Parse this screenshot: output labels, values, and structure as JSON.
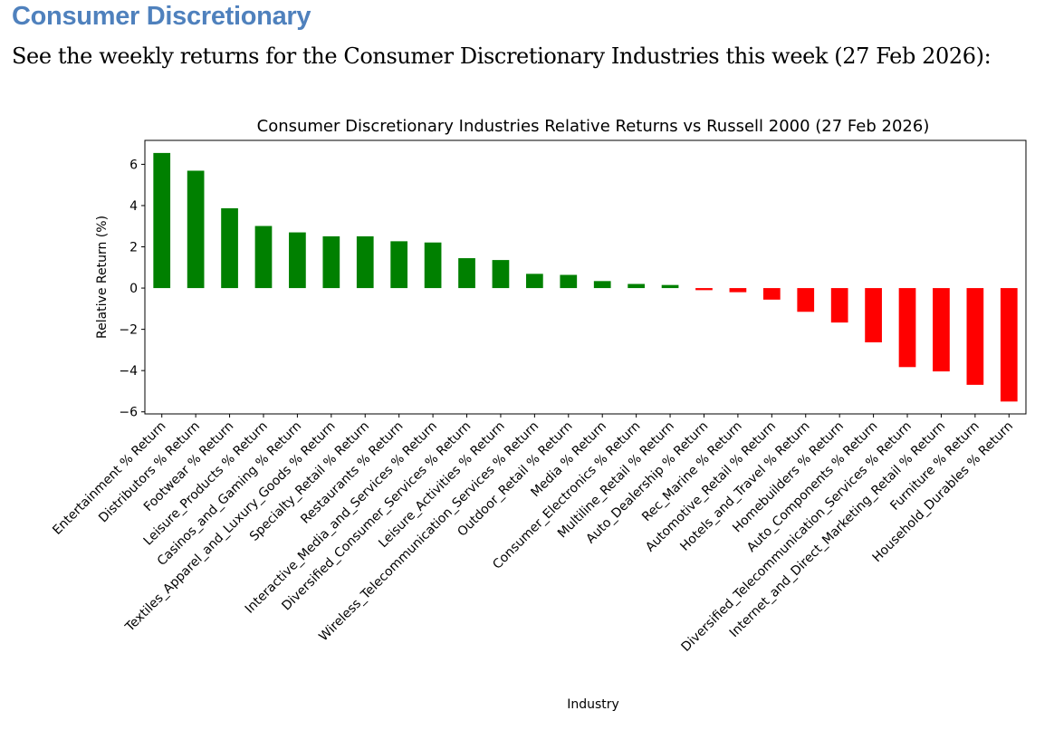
{
  "document": {
    "heading": "Consumer Discretionary",
    "intro": "See the weekly returns for the Consumer Discretionary Industries this week (27 Feb 2026):"
  },
  "chart_data": {
    "type": "bar",
    "title": "Consumer Discretionary Industries Relative Returns vs Russell 2000 (27 Feb 2026)",
    "xlabel": "Industry",
    "ylabel": "Relative Return (%)",
    "ylim": [
      -6.1,
      7.16
    ],
    "yticks": [
      -6,
      -4,
      -2,
      0,
      2,
      4,
      6
    ],
    "grid": false,
    "colors": {
      "positive": "#008000",
      "negative": "#ff0000"
    },
    "categories": [
      "Entertainment % Return",
      "Distributors % Return",
      "Footwear % Return",
      "Leisure_Products % Return",
      "Casinos_and_Gaming % Return",
      "Textiles_Apparel_and_Luxury_Goods % Return",
      "Specialty_Retail % Return",
      "Restaurants % Return",
      "Interactive_Media_and_Services % Return",
      "Diversified_Consumer_Services % Return",
      "Leisure_Activities % Return",
      "Wireless_Telecommunication_Services % Return",
      "Outdoor_Retail % Return",
      "Media % Return",
      "Consumer_Electronics % Return",
      "Multiline_Retail % Return",
      "Auto_Dealership % Return",
      "Rec_Marine % Return",
      "Automotive_Retail % Return",
      "Hotels_and_Travel % Return",
      "Homebuilders % Return",
      "Auto_Components % Return",
      "Diversified_Telecommunication_Services % Return",
      "Internet_and_Direct_Marketing_Retail % Return",
      "Furniture % Return",
      "Household_Durables % Return"
    ],
    "values": [
      6.55,
      5.69,
      3.87,
      3.01,
      2.7,
      2.51,
      2.51,
      2.27,
      2.21,
      1.45,
      1.36,
      0.69,
      0.64,
      0.34,
      0.2,
      0.15,
      -0.1,
      -0.2,
      -0.56,
      -1.15,
      -1.67,
      -2.63,
      -3.83,
      -4.04,
      -4.69,
      -5.5
    ]
  }
}
